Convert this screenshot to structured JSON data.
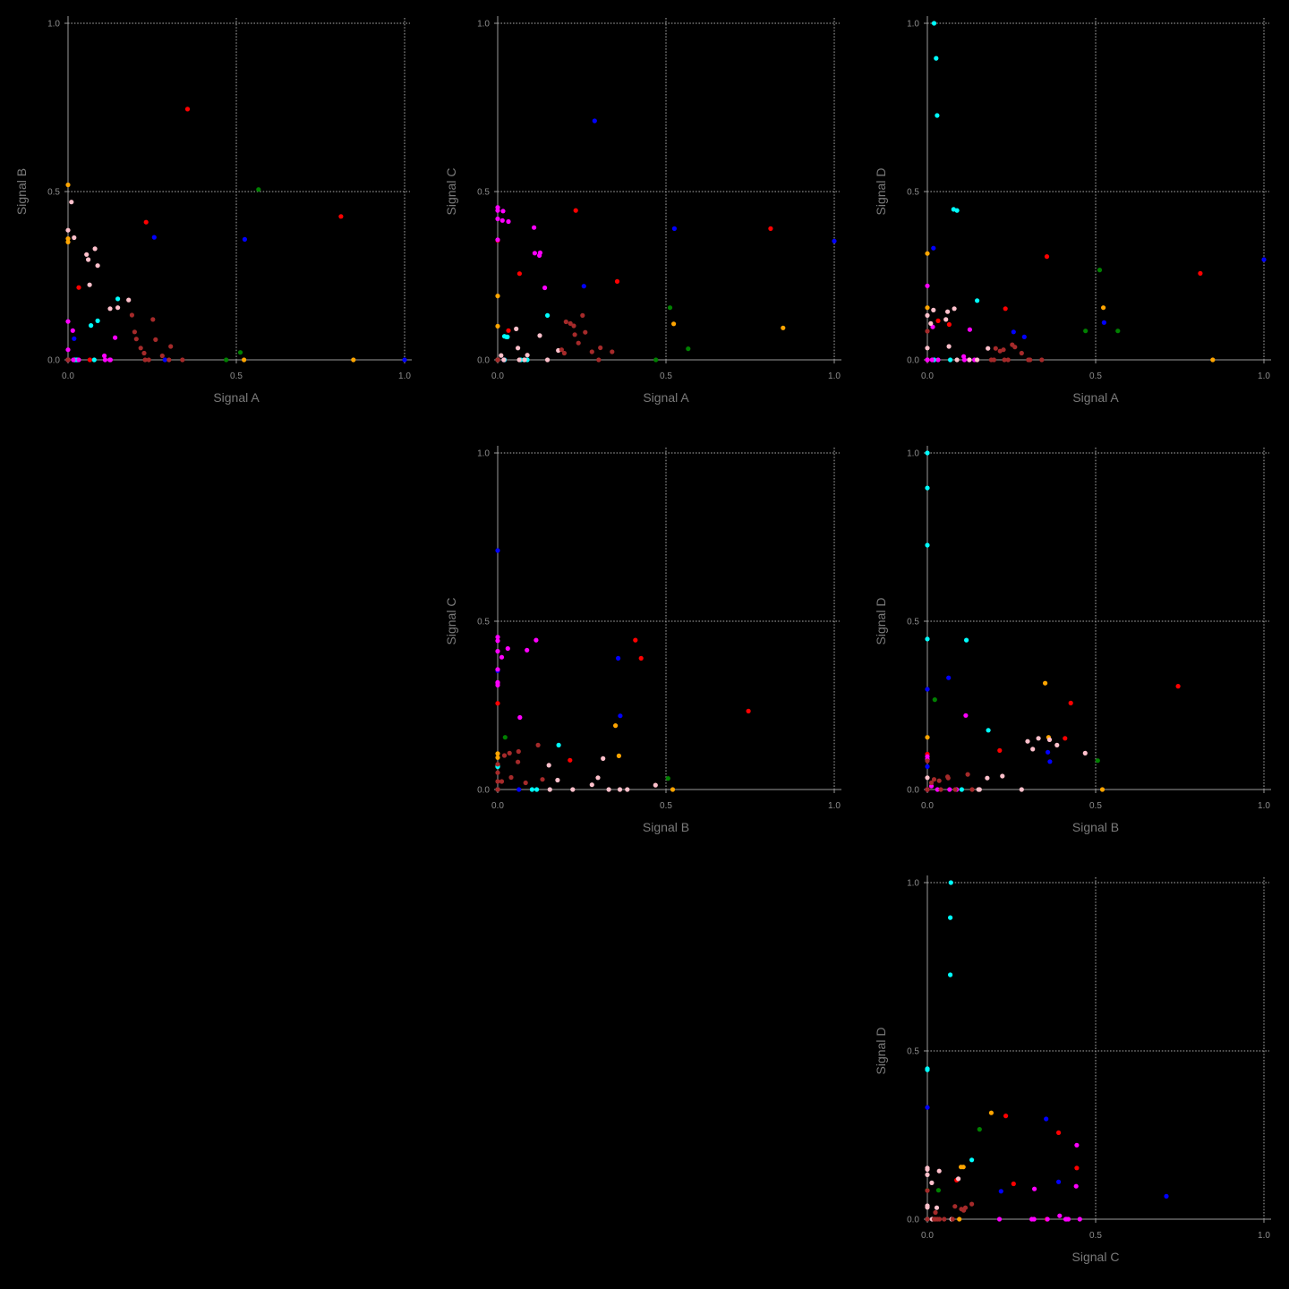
{
  "chart_data": {
    "type": "scatter",
    "layout": "pairplot-upper-triangle",
    "variables": [
      "Signal A",
      "Signal B",
      "Signal C",
      "Signal D"
    ],
    "xlim": [
      0,
      1
    ],
    "ylim": [
      0,
      1
    ],
    "ticks": [
      "0.0",
      "0.5",
      "1.0"
    ],
    "grid": true,
    "legend": "none",
    "colors": {
      "red": "#ff0000",
      "blue": "#0000ff",
      "green": "#008000",
      "orange": "#ffa500",
      "cyan": "#00ffff",
      "magenta": "#ff00ff",
      "pink": "#ffc0cb",
      "brown": "#a52a2a"
    },
    "points": [
      {
        "c": "red",
        "v": [
          0.355,
          0.745,
          0.233,
          0.307
        ]
      },
      {
        "c": "red",
        "v": [
          0.811,
          0.426,
          0.39,
          0.257
        ]
      },
      {
        "c": "red",
        "v": [
          0.232,
          0.409,
          0.444,
          0.152
        ]
      },
      {
        "c": "red",
        "v": [
          0.065,
          0.0,
          0.256,
          0.105
        ]
      },
      {
        "c": "red",
        "v": [
          0.032,
          0.215,
          0.087,
          0.116
        ]
      },
      {
        "c": "red",
        "v": [
          0.0,
          0.0,
          0.355,
          0.0
        ]
      },
      {
        "c": "blue",
        "v": [
          1.0,
          0.0,
          0.353,
          0.298
        ]
      },
      {
        "c": "blue",
        "v": [
          0.525,
          0.358,
          0.39,
          0.111
        ]
      },
      {
        "c": "blue",
        "v": [
          0.256,
          0.364,
          0.219,
          0.083
        ]
      },
      {
        "c": "blue",
        "v": [
          0.288,
          0.0,
          0.71,
          0.068
        ]
      },
      {
        "c": "blue",
        "v": [
          0.018,
          0.063,
          0.0,
          0.332
        ]
      },
      {
        "c": "blue",
        "v": [
          0.02,
          0.0,
          0.0,
          0.0
        ]
      },
      {
        "c": "green",
        "v": [
          0.566,
          0.506,
          0.033,
          0.086
        ]
      },
      {
        "c": "green",
        "v": [
          0.512,
          0.022,
          0.155,
          0.267
        ]
      },
      {
        "c": "green",
        "v": [
          0.47,
          0.0,
          0.0,
          0.086
        ]
      },
      {
        "c": "orange",
        "v": [
          0.0,
          0.52,
          0.0,
          0.0
        ]
      },
      {
        "c": "orange",
        "v": [
          0.0,
          0.36,
          0.1,
          0.155
        ]
      },
      {
        "c": "orange",
        "v": [
          0.0,
          0.35,
          0.19,
          0.316
        ]
      },
      {
        "c": "orange",
        "v": [
          0.848,
          0.0,
          0.095,
          0.0
        ]
      },
      {
        "c": "orange",
        "v": [
          0.523,
          0.0,
          0.107,
          0.155
        ]
      },
      {
        "c": "cyan",
        "v": [
          0.02,
          0.0,
          0.07,
          1.0
        ]
      },
      {
        "c": "cyan",
        "v": [
          0.026,
          0.0,
          0.068,
          0.896
        ]
      },
      {
        "c": "cyan",
        "v": [
          0.029,
          0.0,
          0.068,
          0.726
        ]
      },
      {
        "c": "cyan",
        "v": [
          0.078,
          0.0,
          0.0,
          0.447
        ]
      },
      {
        "c": "cyan",
        "v": [
          0.088,
          0.116,
          0.0,
          0.444
        ]
      },
      {
        "c": "cyan",
        "v": [
          0.148,
          0.181,
          0.132,
          0.176
        ]
      },
      {
        "c": "cyan",
        "v": [
          0.068,
          0.102,
          0.0,
          0.0
        ]
      },
      {
        "c": "cyan",
        "v": [
          0.02,
          0.0,
          0.0,
          0.0
        ]
      },
      {
        "c": "magenta",
        "v": [
          0.0,
          0.114,
          0.444,
          0.22
        ]
      },
      {
        "c": "magenta",
        "v": [
          0.0,
          0.03,
          0.419,
          0.0
        ]
      },
      {
        "c": "magenta",
        "v": [
          0.014,
          0.087,
          0.414,
          0.0
        ]
      },
      {
        "c": "magenta",
        "v": [
          0.0,
          0.0,
          0.453,
          0.0
        ]
      },
      {
        "c": "magenta",
        "v": [
          0.0,
          0.0,
          0.357,
          0.0
        ]
      },
      {
        "c": "magenta",
        "v": [
          0.032,
          0.0,
          0.411,
          0.0
        ]
      },
      {
        "c": "magenta",
        "v": [
          0.11,
          0.0,
          0.317,
          0.0
        ]
      },
      {
        "c": "magenta",
        "v": [
          0.124,
          0.0,
          0.31,
          0.0
        ]
      },
      {
        "c": "magenta",
        "v": [
          0.14,
          0.066,
          0.214,
          0.0
        ]
      },
      {
        "c": "magenta",
        "v": [
          0.108,
          0.012,
          0.393,
          0.01
        ]
      },
      {
        "c": "magenta",
        "v": [
          0.126,
          0.0,
          0.318,
          0.09
        ]
      },
      {
        "c": "magenta",
        "v": [
          0.016,
          0.0,
          0.442,
          0.098
        ]
      },
      {
        "c": "pink",
        "v": [
          0.0,
          0.385,
          0.0,
          0.132
        ]
      },
      {
        "c": "pink",
        "v": [
          0.01,
          0.469,
          0.013,
          0.108
        ]
      },
      {
        "c": "pink",
        "v": [
          0.018,
          0.363,
          0.0,
          0.148
        ]
      },
      {
        "c": "pink",
        "v": [
          0.055,
          0.313,
          0.092,
          0.12
        ]
      },
      {
        "c": "pink",
        "v": [
          0.08,
          0.33,
          0.0,
          0.152
        ]
      },
      {
        "c": "pink",
        "v": [
          0.06,
          0.298,
          0.035,
          0.143
        ]
      },
      {
        "c": "pink",
        "v": [
          0.088,
          0.28,
          0.014,
          0.0
        ]
      },
      {
        "c": "pink",
        "v": [
          0.064,
          0.223,
          0.0,
          0.04
        ]
      },
      {
        "c": "pink",
        "v": [
          0.18,
          0.178,
          0.028,
          0.034
        ]
      },
      {
        "c": "pink",
        "v": [
          0.125,
          0.152,
          0.072,
          0.0
        ]
      },
      {
        "c": "pink",
        "v": [
          0.148,
          0.155,
          0.0,
          0.0
        ]
      },
      {
        "c": "pink",
        "v": [
          0.0,
          0.0,
          0.0,
          0.035
        ]
      },
      {
        "c": "brown",
        "v": [
          0.0,
          0.0,
          0.0,
          0.085
        ]
      },
      {
        "c": "brown",
        "v": [
          0.19,
          0.133,
          0.03,
          0.0
        ]
      },
      {
        "c": "brown",
        "v": [
          0.198,
          0.083,
          0.02,
          0.0
        ]
      },
      {
        "c": "brown",
        "v": [
          0.203,
          0.062,
          0.113,
          0.034
        ]
      },
      {
        "c": "brown",
        "v": [
          0.216,
          0.035,
          0.108,
          0.026
        ]
      },
      {
        "c": "brown",
        "v": [
          0.226,
          0.02,
          0.101,
          0.03
        ]
      },
      {
        "c": "brown",
        "v": [
          0.252,
          0.12,
          0.132,
          0.045
        ]
      },
      {
        "c": "brown",
        "v": [
          0.26,
          0.06,
          0.082,
          0.038
        ]
      },
      {
        "c": "brown",
        "v": [
          0.28,
          0.012,
          0.024,
          0.02
        ]
      },
      {
        "c": "brown",
        "v": [
          0.305,
          0.04,
          0.036,
          0.0
        ]
      },
      {
        "c": "brown",
        "v": [
          0.3,
          0.0,
          0.0,
          0.0
        ]
      },
      {
        "c": "brown",
        "v": [
          0.34,
          0.0,
          0.024,
          0.0
        ]
      },
      {
        "c": "brown",
        "v": [
          0.24,
          0.0,
          0.05,
          0.0
        ]
      },
      {
        "c": "brown",
        "v": [
          0.229,
          0.0,
          0.075,
          0.0
        ]
      }
    ],
    "panels": [
      {
        "name": "panel-a-vs-b",
        "x": 0,
        "y": 1,
        "xlabel": "Signal A",
        "ylabel": "Signal B"
      },
      {
        "name": "panel-a-vs-c",
        "x": 0,
        "y": 2,
        "xlabel": "Signal A",
        "ylabel": "Signal C"
      },
      {
        "name": "panel-a-vs-d",
        "x": 0,
        "y": 3,
        "xlabel": "Signal A",
        "ylabel": "Signal D"
      },
      {
        "name": "panel-b-vs-c",
        "x": 1,
        "y": 2,
        "xlabel": "Signal B",
        "ylabel": "Signal C"
      },
      {
        "name": "panel-b-vs-d",
        "x": 1,
        "y": 3,
        "xlabel": "Signal B",
        "ylabel": "Signal D"
      },
      {
        "name": "panel-c-vs-d",
        "x": 2,
        "y": 3,
        "xlabel": "Signal C",
        "ylabel": "Signal D"
      }
    ]
  }
}
